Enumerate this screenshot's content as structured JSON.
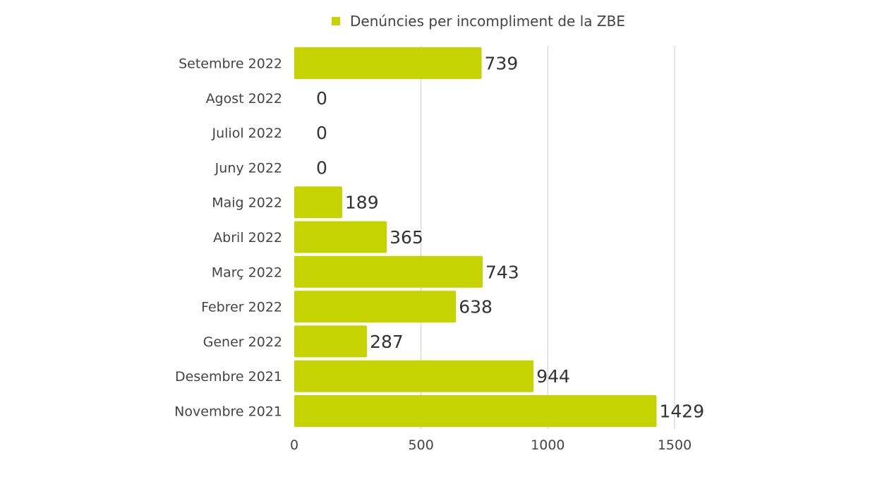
{
  "legend": {
    "label": "Denúncies per incompliment de la ZBE"
  },
  "colors": {
    "bar": "#c5d400",
    "grid": "#cccccc",
    "text": "#444444"
  },
  "chart_data": {
    "type": "bar",
    "orientation": "horizontal",
    "categories": [
      "Setembre 2022",
      "Agost 2022",
      "Juliol 2022",
      "Juny 2022",
      "Maig 2022",
      "Abril 2022",
      "Març 2022",
      "Febrer 2022",
      "Gener 2022",
      "Desembre 2021",
      "Novembre 2021"
    ],
    "series": [
      {
        "name": "Denúncies per incompliment de la ZBE",
        "values": [
          739,
          0,
          0,
          0,
          189,
          365,
          743,
          638,
          287,
          944,
          1429
        ]
      }
    ],
    "xticks": [
      0,
      500,
      1000,
      1500
    ],
    "xlim": [
      0,
      1500
    ],
    "grid": true,
    "legend_position": "top"
  }
}
